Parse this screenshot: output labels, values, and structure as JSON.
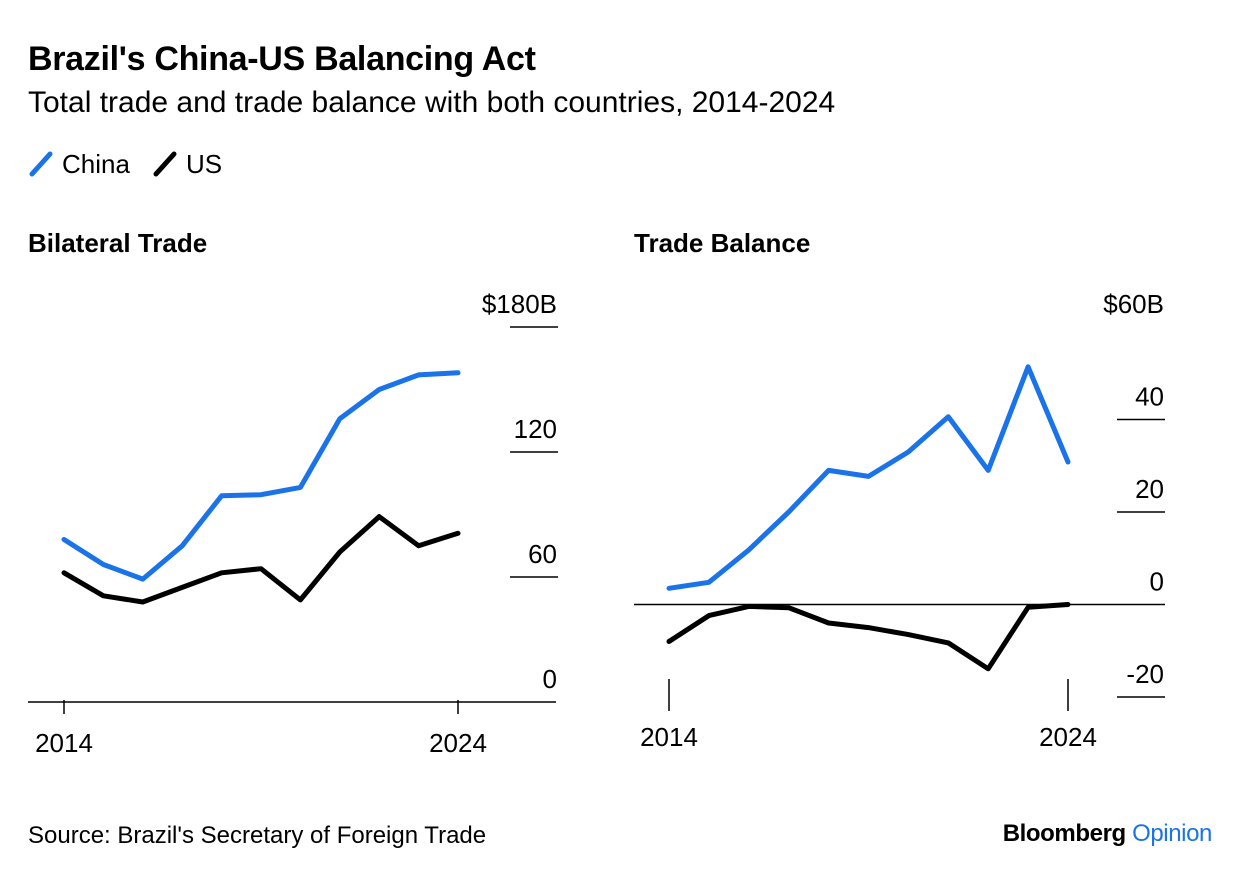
{
  "title": "Brazil's China-US Balancing Act",
  "subtitle": "Total trade and trade balance with both countries, 2014-2024",
  "legend": [
    {
      "label": "China",
      "color": "#1a73e8"
    },
    {
      "label": "US",
      "color": "#000000"
    }
  ],
  "source": "Source: Brazil's Secretary of Foreign Trade",
  "brand": {
    "name": "Bloomberg",
    "suffix": "Opinion",
    "accent_color": "#1a73e8"
  },
  "chart_data": [
    {
      "type": "line",
      "title": "Bilateral Trade",
      "x": [
        2014,
        2015,
        2016,
        2017,
        2018,
        2019,
        2020,
        2021,
        2022,
        2023,
        2024
      ],
      "x_tick_labels": [
        "2014",
        "2024"
      ],
      "ylim": [
        0,
        180
      ],
      "y_ticks": [
        0,
        60,
        120,
        180
      ],
      "y_tick_labels": [
        "0",
        "60",
        "120",
        "$180B"
      ],
      "series": [
        {
          "name": "China",
          "color": "#1a73e8",
          "values": [
            78,
            66,
            59,
            75,
            99,
            99.5,
            103,
            136,
            150,
            157,
            158
          ]
        },
        {
          "name": "US",
          "color": "#000000",
          "values": [
            62,
            51,
            48,
            55,
            62,
            64,
            49,
            72,
            89,
            75,
            81
          ]
        }
      ]
    },
    {
      "type": "line",
      "title": "Trade Balance",
      "x": [
        2014,
        2015,
        2016,
        2017,
        2018,
        2019,
        2020,
        2021,
        2022,
        2023,
        2024
      ],
      "x_tick_labels": [
        "2014",
        "2024"
      ],
      "ylim": [
        -20,
        60
      ],
      "y_ticks": [
        -20,
        0,
        20,
        40,
        60
      ],
      "y_tick_labels": [
        "-20",
        "0",
        "20",
        "40",
        "$60B"
      ],
      "zero_line": true,
      "series": [
        {
          "name": "China",
          "color": "#1a73e8",
          "values": [
            3.5,
            4.8,
            11.8,
            20,
            29,
            27.7,
            33,
            40.6,
            29,
            51.4,
            30.8
          ]
        },
        {
          "name": "US",
          "color": "#000000",
          "values": [
            -8,
            -2.4,
            -0.4,
            -0.7,
            -4,
            -5,
            -6.5,
            -8.3,
            -13.9,
            -0.6,
            0
          ]
        }
      ]
    }
  ]
}
